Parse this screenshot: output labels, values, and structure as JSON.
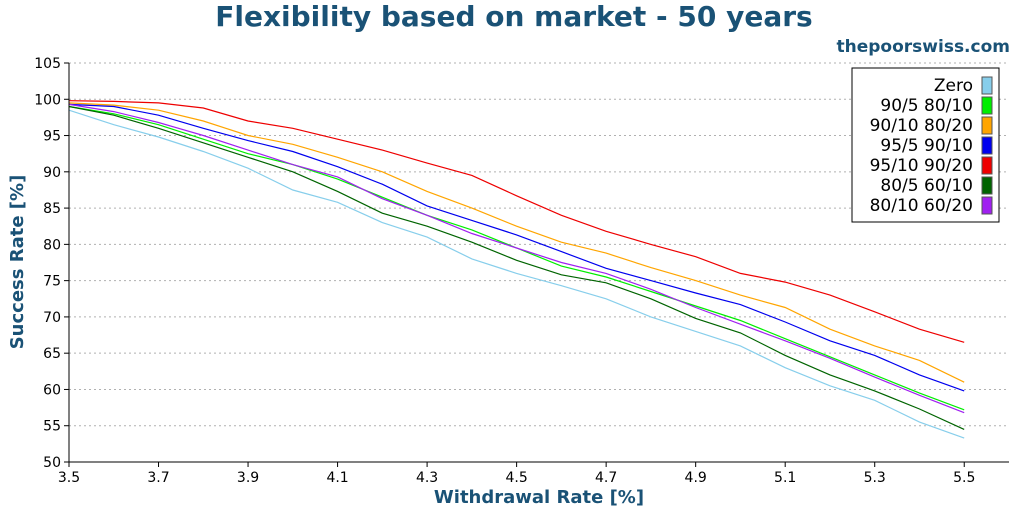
{
  "chart_data": {
    "type": "line",
    "title": "Flexibility based on market - 50 years",
    "watermark": "thepoorswiss.com",
    "xlabel": "Withdrawal Rate [%]",
    "ylabel": "Success Rate [%]",
    "xlim": [
      3.5,
      5.6
    ],
    "ylim": [
      50,
      105
    ],
    "xticks": [
      "3.5",
      "3.7",
      "3.9",
      "4.1",
      "4.3",
      "4.5",
      "4.7",
      "4.9",
      "5.1",
      "5.3",
      "5.5"
    ],
    "yticks": [
      "50",
      "55",
      "60",
      "65",
      "70",
      "75",
      "80",
      "85",
      "90",
      "95",
      "100",
      "105"
    ],
    "grid": "horizontal dotted",
    "legend_position": "top-right",
    "x": [
      3.5,
      3.6,
      3.7,
      3.8,
      3.9,
      4.0,
      4.1,
      4.2,
      4.3,
      4.4,
      4.5,
      4.6,
      4.7,
      4.8,
      4.9,
      5.0,
      5.1,
      5.2,
      5.3,
      5.4,
      5.5
    ],
    "series": [
      {
        "name": "Zero",
        "color": "#87ceeb",
        "values": [
          98.5,
          96.5,
          94.8,
          92.8,
          90.5,
          87.5,
          85.8,
          83.0,
          81.0,
          78.0,
          76.0,
          74.3,
          72.5,
          70.0,
          68.0,
          66.0,
          63.0,
          60.5,
          58.5,
          55.5,
          53.3
        ]
      },
      {
        "name": "90/5 80/10",
        "color": "#00ee00",
        "values": [
          99.0,
          98.0,
          96.5,
          94.5,
          92.5,
          91.0,
          89.0,
          86.5,
          84.0,
          82.0,
          79.5,
          77.0,
          75.5,
          73.5,
          71.5,
          69.5,
          67.0,
          64.5,
          62.0,
          59.5,
          57.2
        ]
      },
      {
        "name": "90/10 80/20",
        "color": "#ffa500",
        "values": [
          99.5,
          99.2,
          98.5,
          97.0,
          95.0,
          93.8,
          92.0,
          90.0,
          87.3,
          85.0,
          82.5,
          80.3,
          78.8,
          76.8,
          75.0,
          73.0,
          71.3,
          68.3,
          66.0,
          64.0,
          61.0
        ]
      },
      {
        "name": "95/5 90/10",
        "color": "#0000ee",
        "values": [
          99.3,
          99.0,
          97.8,
          96.0,
          94.3,
          92.8,
          90.7,
          88.3,
          85.3,
          83.3,
          81.3,
          79.0,
          76.7,
          75.0,
          73.3,
          71.7,
          69.3,
          66.7,
          64.7,
          62.0,
          59.8
        ]
      },
      {
        "name": "95/10 90/20",
        "color": "#ee0000",
        "values": [
          99.8,
          99.7,
          99.5,
          98.8,
          97.0,
          96.0,
          94.5,
          93.0,
          91.2,
          89.5,
          86.7,
          84.0,
          81.8,
          80.0,
          78.3,
          76.0,
          74.8,
          73.0,
          70.7,
          68.3,
          66.5
        ]
      },
      {
        "name": "80/5 60/10",
        "color": "#006400",
        "values": [
          99.0,
          97.8,
          96.0,
          94.0,
          92.0,
          90.0,
          87.3,
          84.3,
          82.5,
          80.3,
          77.8,
          75.8,
          74.7,
          72.5,
          69.8,
          67.8,
          64.7,
          62.0,
          59.8,
          57.3,
          54.5
        ]
      },
      {
        "name": "80/10 60/20",
        "color": "#a020f0",
        "values": [
          99.3,
          98.3,
          96.8,
          95.0,
          93.0,
          91.0,
          89.3,
          86.3,
          84.0,
          81.5,
          79.5,
          77.5,
          76.0,
          73.8,
          71.3,
          69.0,
          66.7,
          64.3,
          61.7,
          59.2,
          56.8
        ]
      }
    ]
  }
}
